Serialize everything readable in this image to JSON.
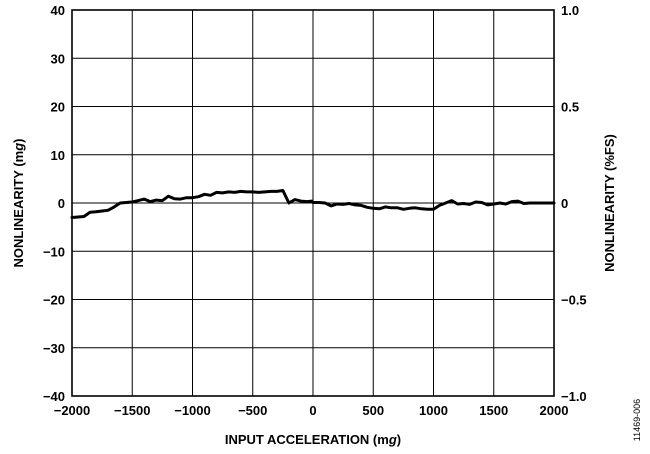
{
  "chart_data": {
    "type": "line",
    "xlabel": {
      "pre": "INPUT ACCELERATION (m",
      "italic": "g",
      "post": ")"
    },
    "ylabel": {
      "pre": "NONLINEARITY (m",
      "italic": "g",
      "post": ")"
    },
    "y2label": "NONLINEARITY (%FS)",
    "xlim": [
      -2000,
      2000
    ],
    "ylim": [
      -40,
      40
    ],
    "y2lim": [
      -1.0,
      1.0
    ],
    "xticks": [
      -2000,
      -1500,
      -1000,
      -500,
      0,
      500,
      1000,
      1500,
      2000
    ],
    "xtick_labels": [
      "−2000",
      "−1500",
      "−1000",
      "−500",
      "0",
      "500",
      "1000",
      "1500",
      "2000"
    ],
    "yticks": [
      40,
      30,
      20,
      10,
      0,
      -10,
      -20,
      -30,
      -40
    ],
    "ytick_labels": [
      "40",
      "30",
      "20",
      "10",
      "0",
      "−10",
      "−20",
      "−30",
      "−40"
    ],
    "y2ticks": [
      1.0,
      0.5,
      0,
      -0.5,
      -1.0
    ],
    "y2tick_labels": [
      "1.0",
      "0.5",
      "0",
      "−0.5",
      "−1.0"
    ],
    "grid": true,
    "series": [
      {
        "color": "#000000",
        "x": [
          -2000,
          -1900,
          -1850,
          -1800,
          -1700,
          -1650,
          -1600,
          -1550,
          -1500,
          -1450,
          -1400,
          -1350,
          -1300,
          -1250,
          -1200,
          -1150,
          -1100,
          -1050,
          -1000,
          -950,
          -900,
          -850,
          -800,
          -750,
          -700,
          -650,
          -600,
          -550,
          -500,
          -450,
          -400,
          -350,
          -300,
          -250,
          -200,
          -150,
          -100,
          -50,
          -10,
          0,
          50,
          100,
          150,
          200,
          250,
          300,
          350,
          400,
          450,
          500,
          550,
          600,
          650,
          700,
          750,
          800,
          850,
          900,
          950,
          1000,
          1050,
          1100,
          1150,
          1200,
          1250,
          1300,
          1350,
          1400,
          1450,
          1500,
          1550,
          1600,
          1650,
          1700,
          1750,
          1800,
          1850,
          1900,
          1950,
          2000
        ],
        "y": [
          -3.0,
          -2.8,
          -1.9,
          -1.8,
          -1.5,
          -0.8,
          0.0,
          0.1,
          0.2,
          0.5,
          0.8,
          0.3,
          0.6,
          0.5,
          1.4,
          0.9,
          0.8,
          1.1,
          1.1,
          1.3,
          1.8,
          1.6,
          2.2,
          2.1,
          2.3,
          2.2,
          2.4,
          2.3,
          2.3,
          2.2,
          2.3,
          2.4,
          2.4,
          2.6,
          0.0,
          0.7,
          0.4,
          0.3,
          0.4,
          0.1,
          0.1,
          0.0,
          -0.6,
          -0.2,
          -0.3,
          -0.1,
          -0.4,
          -0.5,
          -0.9,
          -1.1,
          -1.2,
          -0.8,
          -1.0,
          -1.0,
          -1.3,
          -1.1,
          -1.0,
          -1.2,
          -1.3,
          -1.3,
          -0.5,
          0.0,
          0.5,
          -0.2,
          -0.1,
          -0.3,
          0.2,
          0.1,
          -0.4,
          -0.2,
          0.0,
          -0.2,
          0.3,
          0.4,
          -0.1,
          0.0,
          0.0,
          0.0,
          0.0,
          0.0
        ]
      }
    ]
  },
  "figure_id": "11469-006"
}
